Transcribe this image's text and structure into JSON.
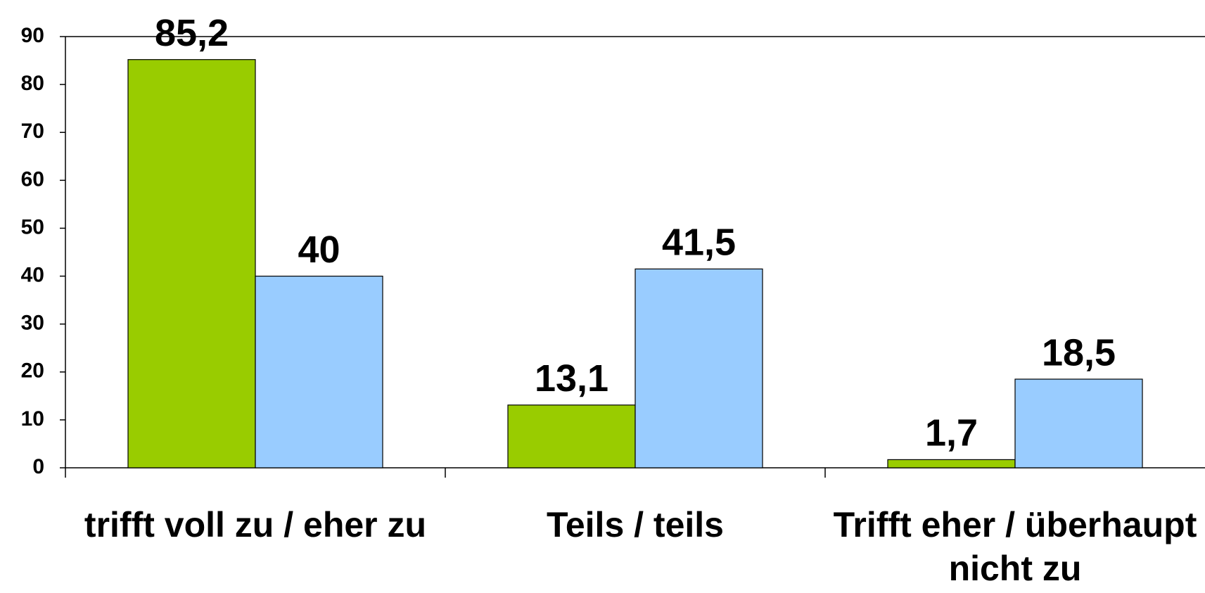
{
  "chart_data": {
    "type": "bar",
    "categories": [
      "trifft voll zu / eher zu",
      "Teils / teils",
      "Trifft eher / überhaupt nicht zu"
    ],
    "series": [
      {
        "color": "#99cc00",
        "values": [
          85.2,
          13.1,
          1.7
        ],
        "value_labels": [
          "85,2",
          "13,1",
          "1,7"
        ]
      },
      {
        "color": "#99ccff",
        "values": [
          40,
          41.5,
          18.5
        ],
        "value_labels": [
          "40",
          "41,5",
          "18,5"
        ]
      }
    ],
    "ylim": [
      0,
      90
    ],
    "yticks": [
      0,
      10,
      20,
      30,
      40,
      50,
      60,
      70,
      80,
      90
    ],
    "grid": false
  }
}
